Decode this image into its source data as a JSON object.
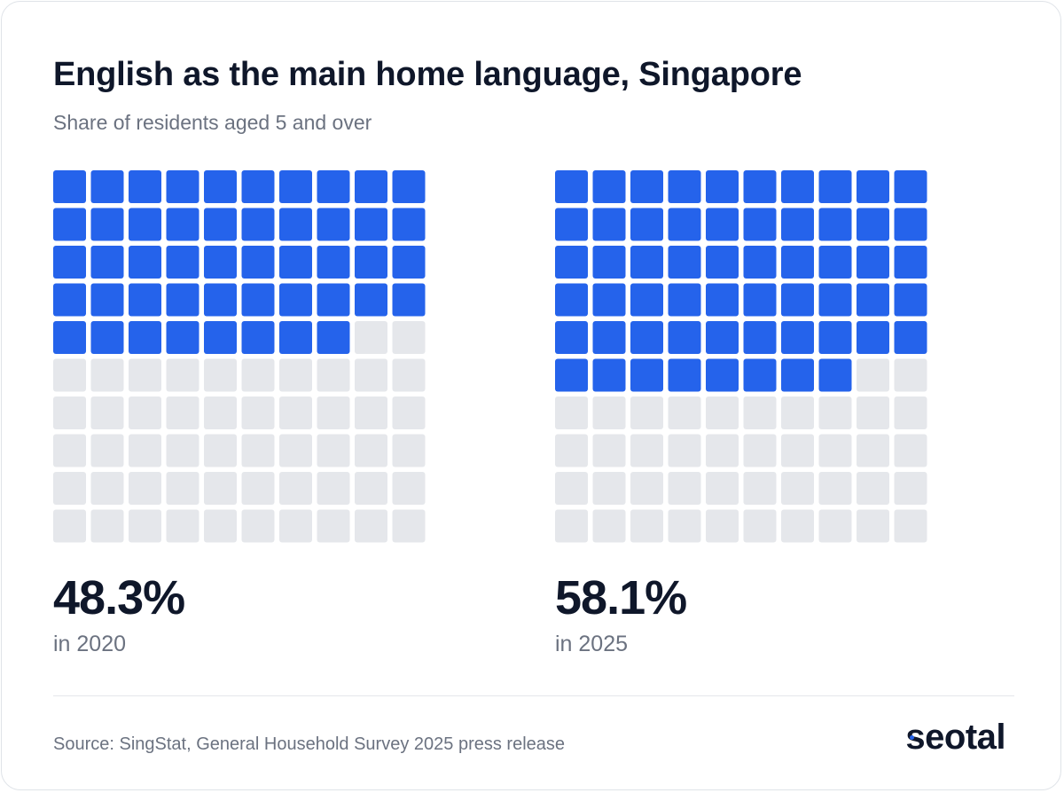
{
  "header": {
    "title": "English as the main home language, Singapore",
    "subtitle": "Share of residents aged 5 and over"
  },
  "colors": {
    "filled": "#2563eb",
    "empty": "#e5e7eb",
    "text": "#0f172a",
    "muted": "#6b7280"
  },
  "chart_data": [
    {
      "type": "waffle",
      "value": 48.3,
      "value_label": "48.3%",
      "label": "in 2020",
      "total_cells": 100
    },
    {
      "type": "waffle",
      "value": 58.1,
      "value_label": "58.1%",
      "label": "in 2025",
      "total_cells": 100
    }
  ],
  "footer": {
    "source": "Source: SingStat, General Household Survey 2025 press release",
    "brand": "seotal"
  }
}
